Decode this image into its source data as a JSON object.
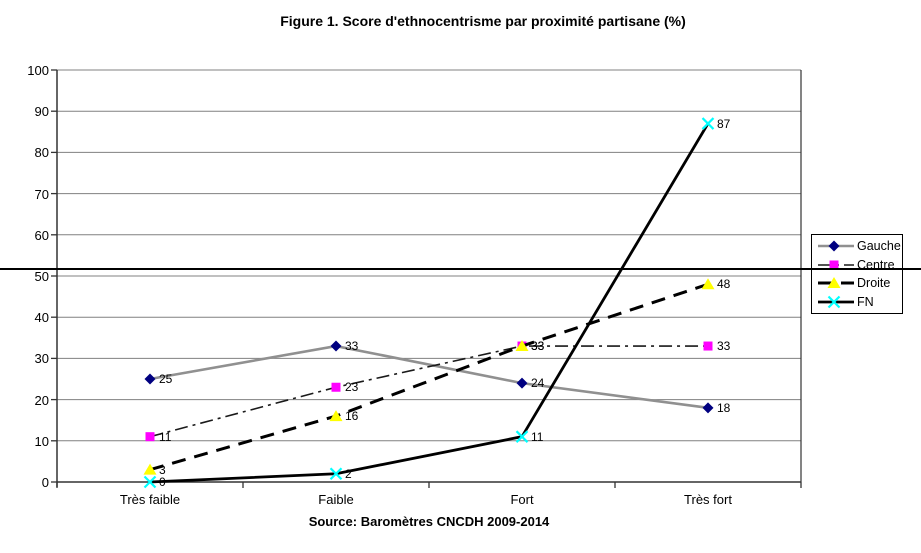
{
  "title": "Figure 1. Score d'ethnocentrisme par proximité partisane (%)",
  "source": "Source: Baromètres CNCDH 2009-2014",
  "chart_data": {
    "type": "line",
    "title": "Figure 1. Score d'ethnocentrisme par proximité partisane (%)",
    "source": "Source: Baromètres CNCDH 2009-2014",
    "categories": [
      "Très faible",
      "Faible",
      "Fort",
      "Très fort"
    ],
    "series": [
      {
        "name": "Gauche",
        "values": [
          25,
          33,
          24,
          18
        ],
        "line_color": "#909090",
        "line_style": "solid",
        "line_width": 2.6,
        "marker": "diamond",
        "marker_color": "#000080"
      },
      {
        "name": "Centre",
        "values": [
          11,
          23,
          33,
          33
        ],
        "line_color": "#1a1a1a",
        "line_style": "dashdot",
        "line_width": 1.6,
        "marker": "square",
        "marker_color": "#FF00FF"
      },
      {
        "name": "Droite",
        "values": [
          3,
          16,
          33,
          48
        ],
        "line_color": "#000000",
        "line_style": "dashed",
        "line_width": 3.0,
        "marker": "triangle",
        "marker_color": "#FFFF00"
      },
      {
        "name": "FN",
        "values": [
          0,
          2,
          11,
          87
        ],
        "line_color": "#000000",
        "line_style": "solid",
        "line_width": 2.8,
        "marker": "x",
        "marker_color": "#00FFFF"
      }
    ],
    "ylim": [
      0,
      100
    ],
    "yticks": [
      0,
      10,
      20,
      30,
      40,
      50,
      60,
      70,
      80,
      90,
      100
    ],
    "grid": true,
    "gridline_color": "#808080",
    "axis_color": "#333333",
    "data_labels": true,
    "legend_position": "right"
  }
}
